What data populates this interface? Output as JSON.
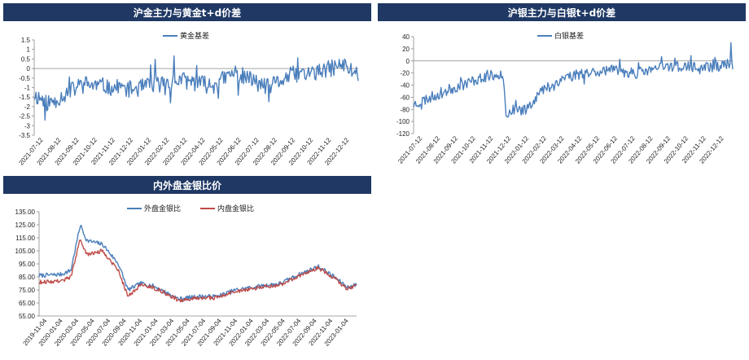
{
  "chart_data": [
    {
      "type": "line",
      "title": "沪金主力与黄金t+d价差",
      "series": [
        {
          "name": "黄金基差",
          "color": "#4a7ebb",
          "values": []
        }
      ],
      "ylim": [
        -3.5,
        1.5
      ],
      "yticks": [
        "1.5",
        "1",
        "0.5",
        "0",
        "-0.5",
        "-1",
        "-1.5",
        "-2",
        "-2.5",
        "-3",
        "-3.5"
      ],
      "ytick_values": [
        1.5,
        1,
        0.5,
        0,
        -0.5,
        -1,
        -1.5,
        -2,
        -2.5,
        -3,
        -3.5
      ],
      "xticks": [
        "2021-07-12",
        "2021-08-12",
        "2021-09-12",
        "2021-10-12",
        "2021-11-12",
        "2021-12-12",
        "2022-01-12",
        "2022-02-12",
        "2022-03-12",
        "2022-04-12",
        "2022-05-12",
        "2022-06-12",
        "2022-07-12",
        "2022-08-12",
        "2022-09-12",
        "2022-10-12",
        "2022-11-12",
        "2022-12-12"
      ],
      "legend": "top-center",
      "grid": false
    },
    {
      "type": "line",
      "title": "沪银主力与白银t+d价差",
      "series": [
        {
          "name": "白银基差",
          "color": "#4a7ebb",
          "values": []
        }
      ],
      "ylim": [
        -120,
        40
      ],
      "yticks": [
        "40",
        "20",
        "0",
        "-20",
        "-40",
        "-60",
        "-80",
        "-100",
        "-120"
      ],
      "ytick_values": [
        40,
        20,
        0,
        -20,
        -40,
        -60,
        -80,
        -100,
        -120
      ],
      "xticks": [
        "2021-07-12",
        "2021-08-12",
        "2021-09-12",
        "2021-10-12",
        "2021-11-12",
        "2021-12-12",
        "2022-01-12",
        "2022-02-12",
        "2022-03-12",
        "2022-04-12",
        "2022-05-12",
        "2022-06-12",
        "2022-07-12",
        "2022-08-12",
        "2022-09-12",
        "2022-10-12",
        "2022-11-12",
        "2022-12-12"
      ],
      "legend": "top-center",
      "grid": false
    },
    {
      "type": "line",
      "title": "内外盘金银比价",
      "series": [
        {
          "name": "外盘金银比",
          "color": "#4a7ebb",
          "values": []
        },
        {
          "name": "内盘金银比",
          "color": "#be4b48",
          "values": []
        }
      ],
      "ylim": [
        55,
        135
      ],
      "yticks": [
        "135.00",
        "125.00",
        "115.00",
        "105.00",
        "95.00",
        "85.00",
        "75.00",
        "65.00",
        "55.00"
      ],
      "ytick_values": [
        135,
        125,
        115,
        105,
        95,
        85,
        75,
        65,
        55
      ],
      "xticks": [
        "2019-11-04",
        "2020-01-04",
        "2020-03-04",
        "2020-05-04",
        "2020-07-04",
        "2020-09-04",
        "2020-11-04",
        "2021-01-04",
        "2021-03-04",
        "2021-05-04",
        "2021-07-04",
        "2021-09-04",
        "2021-11-04",
        "2022-01-04",
        "2022-03-04",
        "2022-05-04",
        "2022-07-04",
        "2022-09-04",
        "2022-11-04",
        "2023-01-04"
      ],
      "legend": "top-left",
      "grid": false
    }
  ]
}
